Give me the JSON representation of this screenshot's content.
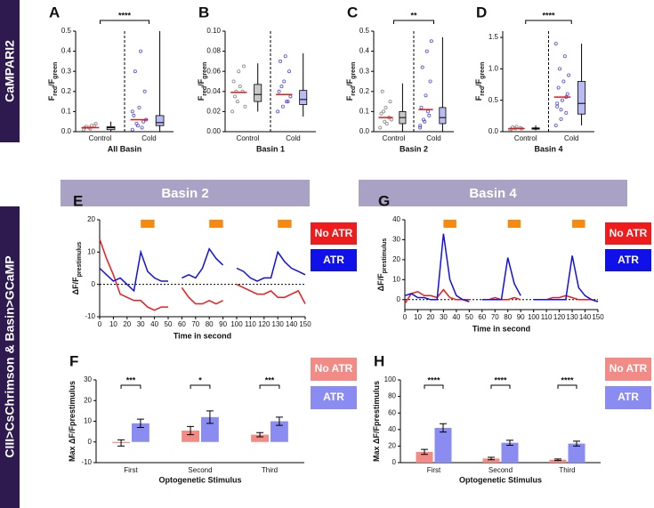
{
  "side_labels": [
    "CaMPARI2",
    "CIII>CsChrimson & Basin>GCaMP"
  ],
  "group_headers": [
    "Basin 2",
    "Basin 4"
  ],
  "chart_data": [
    {
      "type": "strip",
      "panel": "A",
      "title": "All Basin",
      "y_label": [
        "F",
        "red",
        "/F",
        "green"
      ],
      "categories": [
        "Control",
        "Cold"
      ],
      "significance": "****",
      "ylim": [
        0,
        0.5
      ],
      "yticks": [
        {
          "value": 0,
          "label": "0.0"
        },
        0.1,
        0.2,
        0.3,
        0.4,
        0.5
      ],
      "means": [
        0.02,
        0.06
      ],
      "points": [
        [
          0.01,
          0.02,
          0.03,
          0.02,
          0.015,
          0.04,
          0.025,
          0.03
        ],
        [
          0.01,
          0.03,
          0.05,
          0.08,
          0.12,
          0.2,
          0.3,
          0.4,
          0.06,
          0.04,
          0.02,
          0.1
        ]
      ],
      "boxes": [
        {
          "min": 0,
          "q1": 0.01,
          "median": 0.02,
          "q3": 0.025,
          "max": 0.05
        },
        {
          "min": 0,
          "q1": 0.03,
          "median": 0.045,
          "q3": 0.08,
          "max": 0.5
        }
      ]
    },
    {
      "type": "strip",
      "panel": "B",
      "title": "Basin 1",
      "y_label": [
        "F",
        "red",
        "/F",
        "green"
      ],
      "categories": [
        "Control",
        "Cold"
      ],
      "ylim": [
        0,
        0.1
      ],
      "yticks": [
        {
          "value": 0,
          "label": "0.00"
        },
        0.02,
        0.04,
        0.06,
        0.08,
        {
          "value": 0.1,
          "label": "0.10"
        }
      ],
      "means": [
        0.039,
        0.037
      ],
      "points": [
        [
          0.02,
          0.03,
          0.04,
          0.05,
          0.06,
          0.065,
          0.035,
          0.045,
          0.025,
          0.04
        ],
        [
          0.02,
          0.025,
          0.03,
          0.04,
          0.05,
          0.06,
          0.07,
          0.075,
          0.035,
          0.045,
          0.03
        ]
      ],
      "boxes": [
        {
          "min": 0.02,
          "q1": 0.03,
          "median": 0.037,
          "q3": 0.047,
          "max": 0.068
        },
        {
          "min": 0.015,
          "q1": 0.027,
          "median": 0.032,
          "q3": 0.041,
          "max": 0.078
        }
      ]
    },
    {
      "type": "strip",
      "panel": "C",
      "title": "Basin 2",
      "y_label": [
        "F",
        "red",
        "/F",
        "green"
      ],
      "categories": [
        "Control",
        "Cold"
      ],
      "significance": "**",
      "ylim": [
        0,
        0.5
      ],
      "yticks": [
        {
          "value": 0,
          "label": "0.0"
        },
        0.1,
        0.2,
        0.3,
        0.4,
        0.5
      ],
      "means": [
        0.07,
        0.11
      ],
      "points": [
        [
          0.02,
          0.05,
          0.07,
          0.09,
          0.12,
          0.15,
          0.2,
          0.04,
          0.06,
          0.1
        ],
        [
          0.02,
          0.05,
          0.08,
          0.12,
          0.18,
          0.25,
          0.32,
          0.4,
          0.45,
          0.06,
          0.1,
          0.03
        ]
      ],
      "boxes": [
        {
          "min": 0,
          "q1": 0.04,
          "median": 0.07,
          "q3": 0.1,
          "max": 0.24
        },
        {
          "min": 0,
          "q1": 0.04,
          "median": 0.07,
          "q3": 0.12,
          "max": 0.47
        }
      ]
    },
    {
      "type": "strip",
      "panel": "D",
      "title": "Basin 4",
      "y_label": [
        "F",
        "red",
        "/F",
        "green"
      ],
      "categories": [
        "Control",
        "Cold"
      ],
      "significance": "****",
      "ylim": [
        0,
        1.6
      ],
      "yticks": [
        {
          "value": 0,
          "label": "0.0"
        },
        0.5,
        {
          "value": 1,
          "label": "1.0"
        },
        1.5
      ],
      "means": [
        0.05,
        0.55
      ],
      "points": [
        [
          0.03,
          0.05,
          0.06,
          0.04,
          0.08,
          0.05,
          0.07
        ],
        [
          0.1,
          0.2,
          0.3,
          0.4,
          0.5,
          0.6,
          0.7,
          0.8,
          0.9,
          1.0,
          1.2,
          1.4,
          0.35,
          0.55,
          0.45
        ]
      ],
      "boxes": [
        {
          "min": 0.02,
          "q1": 0.04,
          "median": 0.05,
          "q3": 0.06,
          "max": 0.1
        },
        {
          "min": 0.1,
          "q1": 0.28,
          "median": 0.45,
          "q3": 0.8,
          "max": 1.4
        }
      ]
    },
    {
      "type": "line",
      "panel": "E",
      "x_label": "Time in second",
      "y_label": [
        "ΔF/F",
        "prestimulus"
      ],
      "x": [
        0,
        5,
        10,
        15,
        20,
        25,
        30,
        35,
        40,
        45,
        50,
        55,
        60,
        65,
        70,
        75,
        80,
        85,
        90,
        95,
        100,
        105,
        110,
        115,
        120,
        125,
        130,
        135,
        140,
        145,
        150
      ],
      "xlim": [
        0,
        150
      ],
      "xticks": [
        0,
        10,
        20,
        30,
        40,
        50,
        60,
        70,
        80,
        90,
        100,
        110,
        120,
        130,
        140,
        150
      ],
      "ylim": [
        -10,
        20
      ],
      "yticks": [
        -10,
        0,
        10,
        20
      ],
      "stimuli": [
        [
          30,
          40
        ],
        [
          80,
          90
        ],
        [
          130,
          140
        ]
      ],
      "stimulus_color": "#f7890f",
      "series": [
        {
          "name": "No ATR",
          "color": "#ee1c1c",
          "values": [
            14,
            8,
            3,
            -3,
            -4,
            -5,
            -5,
            -7,
            -8,
            -7,
            -7,
            null,
            -1,
            -4,
            -6,
            -6,
            -5,
            -6,
            -5,
            null,
            0,
            -1,
            -2,
            -3,
            -3,
            -2,
            -4,
            -4,
            -3,
            -2,
            -6
          ]
        },
        {
          "name": "ATR",
          "color": "#1010e8",
          "values": [
            5,
            3,
            1,
            2,
            0,
            -2,
            10,
            4,
            2,
            1,
            1,
            null,
            2,
            3,
            2,
            5,
            11,
            8,
            6,
            null,
            5,
            4,
            2,
            1,
            2,
            2,
            10,
            7,
            5,
            4,
            3
          ]
        }
      ]
    },
    {
      "type": "bar",
      "panel": "F",
      "x_label": "Optogenetic Stimulus",
      "y_label": [
        "Max ΔF/Fprestimulus"
      ],
      "categories": [
        "First",
        "Second",
        "Third"
      ],
      "significance": [
        "***",
        "*",
        "***"
      ],
      "ylim": [
        -10,
        30
      ],
      "yticks": [
        -10,
        0,
        10,
        20,
        30
      ],
      "series": [
        {
          "name": "No ATR",
          "color": "#f28b85",
          "values": [
            -0.5,
            5.5,
            3.5
          ],
          "errors": [
            1.5,
            2,
            1
          ]
        },
        {
          "name": "ATR",
          "color": "#8a8cf2",
          "values": [
            9,
            12,
            10
          ],
          "errors": [
            2,
            3,
            2
          ]
        }
      ]
    },
    {
      "type": "line",
      "panel": "G",
      "x_label": "Time in second",
      "y_label": [
        "ΔF/F",
        "prestimulus"
      ],
      "x": [
        0,
        5,
        10,
        15,
        20,
        25,
        30,
        35,
        40,
        45,
        50,
        55,
        60,
        65,
        70,
        75,
        80,
        85,
        90,
        95,
        100,
        105,
        110,
        115,
        120,
        125,
        130,
        135,
        140,
        145,
        150
      ],
      "xlim": [
        0,
        150
      ],
      "xticks": [
        0,
        10,
        20,
        30,
        40,
        50,
        60,
        70,
        80,
        90,
        100,
        110,
        120,
        130,
        140,
        150
      ],
      "ylim": [
        -5,
        40
      ],
      "yticks": [
        0,
        10,
        20,
        30,
        40
      ],
      "stimuli": [
        [
          30,
          40
        ],
        [
          80,
          90
        ],
        [
          130,
          140
        ]
      ],
      "stimulus_color": "#f7890f",
      "series": [
        {
          "name": "No ATR",
          "color": "#ee1c1c",
          "values": [
            -2,
            3,
            4,
            2,
            2,
            1,
            5,
            1,
            0,
            0,
            0,
            null,
            0,
            0,
            1,
            0,
            0,
            1,
            0,
            null,
            0,
            0,
            0,
            1,
            1,
            2,
            1,
            0,
            0,
            0,
            -1
          ]
        },
        {
          "name": "ATR",
          "color": "#1010e8",
          "values": [
            2,
            3,
            1,
            1,
            0,
            0,
            33,
            10,
            2,
            0,
            -1,
            null,
            0,
            0,
            0,
            0,
            21,
            8,
            2,
            null,
            0,
            0,
            0,
            0,
            0,
            0,
            22,
            6,
            2,
            0,
            -1
          ]
        }
      ]
    },
    {
      "type": "bar",
      "panel": "H",
      "x_label": "Optogenetic Stimulus",
      "y_label": [
        "Max ΔF/Fprestimulus"
      ],
      "categories": [
        "First",
        "Second",
        "Third"
      ],
      "significance": [
        "****",
        "****",
        "****"
      ],
      "ylim": [
        0,
        100
      ],
      "yticks": [
        0,
        20,
        40,
        60,
        80,
        100
      ],
      "series": [
        {
          "name": "No ATR",
          "color": "#f28b85",
          "values": [
            13,
            5,
            3.5
          ],
          "errors": [
            3,
            1.5,
            1
          ]
        },
        {
          "name": "ATR",
          "color": "#8a8cf2",
          "values": [
            42,
            24,
            23
          ],
          "errors": [
            5,
            3,
            3
          ]
        }
      ]
    }
  ]
}
